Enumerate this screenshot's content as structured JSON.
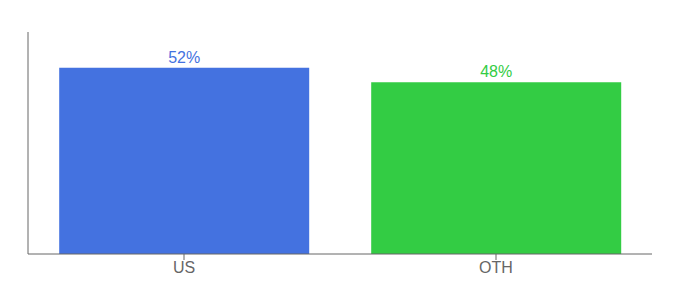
{
  "chart_data": {
    "type": "bar",
    "categories": [
      "US",
      "OTH"
    ],
    "values": [
      52,
      48
    ],
    "colors": [
      "#4472e0",
      "#33cc44"
    ],
    "value_labels": [
      "52%",
      "48%"
    ],
    "data_labels": true,
    "ylim": [
      0,
      62
    ],
    "tick_labels": "x",
    "grid": false
  }
}
